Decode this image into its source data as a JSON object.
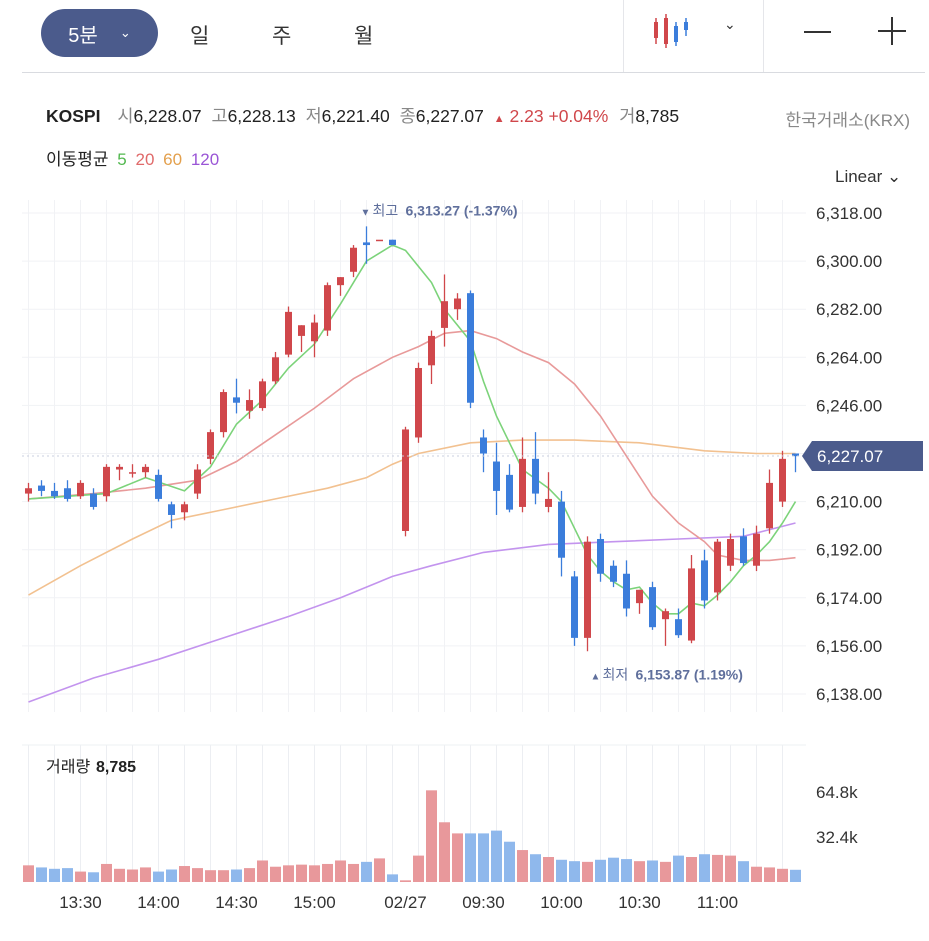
{
  "toolbar": {
    "intervals": [
      "5분",
      "일",
      "주",
      "월"
    ],
    "selected_interval": "5분"
  },
  "quote": {
    "symbol": "KOSPI",
    "open_label": "시",
    "open": "6,228.07",
    "high_label": "고",
    "high": "6,228.13",
    "low_label": "저",
    "low": "6,221.40",
    "close_label": "종",
    "close": "6,227.07",
    "change_arrow": "▲",
    "change": "2.23",
    "change_pct": "+0.04%",
    "volume_label": "거",
    "volume": "8,785",
    "exchange": "한국거래소(KRX)"
  },
  "ma_legend": {
    "title": "이동평균",
    "periods": [
      {
        "label": "5",
        "color": "#52b84f"
      },
      {
        "label": "20",
        "color": "#e06a6a"
      },
      {
        "label": "60",
        "color": "#e3a04d"
      },
      {
        "label": "120",
        "color": "#9a55d6"
      }
    ]
  },
  "scale": "Linear",
  "colors": {
    "up": "#d0474b",
    "down": "#3b7ddb",
    "up_volume": "#e8989b",
    "down_volume": "#8fb8ec",
    "ma5": "#7cd37a",
    "ma20": "#e89a9a",
    "ma60": "#f2c190",
    "ma120": "#c394ee",
    "current_tag": "#4b5b8c",
    "annotation": "#5f6f9c"
  },
  "chart_data": {
    "type": "candlestick",
    "y_ticks": [
      "6,318.00",
      "6,300.00",
      "6,282.00",
      "6,264.00",
      "6,246.00",
      "6,210.00",
      "6,192.00",
      "6,174.00",
      "6,156.00",
      "6,138.00"
    ],
    "y_tick_values": [
      6318,
      6300,
      6282,
      6264,
      6246,
      6210,
      6192,
      6174,
      6156,
      6138
    ],
    "ylim": [
      6131,
      6325
    ],
    "x_labels": [
      "13:30",
      "14:00",
      "14:30",
      "15:00",
      "02/27",
      "09:30",
      "10:00",
      "10:30",
      "11:00"
    ],
    "x_label_index": [
      4,
      10,
      16,
      22,
      29,
      35,
      41,
      47,
      53
    ],
    "current_price": "6,227.07",
    "current_price_value": 6227.07,
    "high_note": {
      "arrow": "▼",
      "label": "최고",
      "value": "6,313.27 (-1.37%)",
      "price": 6313.27,
      "index": 26
    },
    "low_note": {
      "arrow": "▲",
      "label": "최저",
      "value": "6,153.87 (1.19%)",
      "price": 6153.87,
      "index": 44
    },
    "candles": [
      {
        "o": 6213,
        "h": 6217,
        "l": 6210,
        "c": 6215
      },
      {
        "o": 6216,
        "h": 6218,
        "l": 6212,
        "c": 6214
      },
      {
        "o": 6214,
        "h": 6217,
        "l": 6211,
        "c": 6212
      },
      {
        "o": 6215,
        "h": 6218,
        "l": 6210,
        "c": 6211
      },
      {
        "o": 6212,
        "h": 6218,
        "l": 6211,
        "c": 6217
      },
      {
        "o": 6213,
        "h": 6215,
        "l": 6207,
        "c": 6208
      },
      {
        "o": 6212,
        "h": 6224,
        "l": 6210,
        "c": 6223
      },
      {
        "o": 6222,
        "h": 6224,
        "l": 6218,
        "c": 6223
      },
      {
        "o": 6221,
        "h": 6224,
        "l": 6219,
        "c": 6221
      },
      {
        "o": 6221,
        "h": 6224,
        "l": 6219,
        "c": 6223
      },
      {
        "o": 6220,
        "h": 6222,
        "l": 6210,
        "c": 6211
      },
      {
        "o": 6209,
        "h": 6210,
        "l": 6200,
        "c": 6205
      },
      {
        "o": 6206,
        "h": 6210,
        "l": 6203,
        "c": 6209
      },
      {
        "o": 6213,
        "h": 6224,
        "l": 6211,
        "c": 6222
      },
      {
        "o": 6226,
        "h": 6237,
        "l": 6224,
        "c": 6236
      },
      {
        "o": 6236,
        "h": 6252,
        "l": 6234,
        "c": 6251
      },
      {
        "o": 6249,
        "h": 6256,
        "l": 6243,
        "c": 6247
      },
      {
        "o": 6244,
        "h": 6252,
        "l": 6241,
        "c": 6248
      },
      {
        "o": 6245,
        "h": 6256,
        "l": 6244,
        "c": 6255
      },
      {
        "o": 6255,
        "h": 6266,
        "l": 6254,
        "c": 6264
      },
      {
        "o": 6265,
        "h": 6283,
        "l": 6264,
        "c": 6281
      },
      {
        "o": 6272,
        "h": 6276,
        "l": 6266,
        "c": 6276
      },
      {
        "o": 6270,
        "h": 6280,
        "l": 6264,
        "c": 6277
      },
      {
        "o": 6274,
        "h": 6292,
        "l": 6272,
        "c": 6291
      },
      {
        "o": 6291,
        "h": 6294,
        "l": 6287,
        "c": 6294
      },
      {
        "o": 6296,
        "h": 6306,
        "l": 6294,
        "c": 6305
      },
      {
        "o": 6307,
        "h": 6313,
        "l": 6299,
        "c": 6306
      },
      {
        "o": 6308,
        "h": 6308,
        "l": 6308,
        "c": 6308
      },
      {
        "o": 6308,
        "h": 6308,
        "l": 6306,
        "c": 6306
      },
      {
        "o": 6199,
        "h": 6238,
        "l": 6197,
        "c": 6237
      },
      {
        "o": 6234,
        "h": 6262,
        "l": 6232,
        "c": 6260
      },
      {
        "o": 6261,
        "h": 6274,
        "l": 6254,
        "c": 6272
      },
      {
        "o": 6275,
        "h": 6295,
        "l": 6268,
        "c": 6285
      },
      {
        "o": 6282,
        "h": 6288,
        "l": 6278,
        "c": 6286
      },
      {
        "o": 6288,
        "h": 6289,
        "l": 6245,
        "c": 6247
      },
      {
        "o": 6234,
        "h": 6237,
        "l": 6221,
        "c": 6228
      },
      {
        "o": 6225,
        "h": 6232,
        "l": 6205,
        "c": 6214
      },
      {
        "o": 6220,
        "h": 6224,
        "l": 6206,
        "c": 6207
      },
      {
        "o": 6208,
        "h": 6234,
        "l": 6206,
        "c": 6226
      },
      {
        "o": 6226,
        "h": 6236,
        "l": 6209,
        "c": 6213
      },
      {
        "o": 6208,
        "h": 6221,
        "l": 6206,
        "c": 6211
      },
      {
        "o": 6210,
        "h": 6214,
        "l": 6182,
        "c": 6189
      },
      {
        "o": 6182,
        "h": 6184,
        "l": 6156,
        "c": 6159
      },
      {
        "o": 6159,
        "h": 6197,
        "l": 6154,
        "c": 6195
      },
      {
        "o": 6196,
        "h": 6198,
        "l": 6180,
        "c": 6183
      },
      {
        "o": 6186,
        "h": 6188,
        "l": 6178,
        "c": 6180
      },
      {
        "o": 6183,
        "h": 6188,
        "l": 6167,
        "c": 6170
      },
      {
        "o": 6172,
        "h": 6177,
        "l": 6168,
        "c": 6177
      },
      {
        "o": 6178,
        "h": 6180,
        "l": 6162,
        "c": 6163
      },
      {
        "o": 6166,
        "h": 6170,
        "l": 6156,
        "c": 6169
      },
      {
        "o": 6166,
        "h": 6170,
        "l": 6159,
        "c": 6160
      },
      {
        "o": 6158,
        "h": 6190,
        "l": 6157,
        "c": 6185
      },
      {
        "o": 6188,
        "h": 6192,
        "l": 6170,
        "c": 6173
      },
      {
        "o": 6176,
        "h": 6196,
        "l": 6173,
        "c": 6195
      },
      {
        "o": 6186,
        "h": 6198,
        "l": 6184,
        "c": 6196
      },
      {
        "o": 6197,
        "h": 6200,
        "l": 6186,
        "c": 6187
      },
      {
        "o": 6186,
        "h": 6201,
        "l": 6184,
        "c": 6198
      },
      {
        "o": 6200,
        "h": 6222,
        "l": 6198,
        "c": 6217
      },
      {
        "o": 6210,
        "h": 6229,
        "l": 6208,
        "c": 6226
      },
      {
        "o": 6228,
        "h": 6228,
        "l": 6221,
        "c": 6227
      }
    ],
    "ma": {
      "ma5": [
        [
          0,
          6211
        ],
        [
          6,
          6213
        ],
        [
          9,
          6219
        ],
        [
          12,
          6214
        ],
        [
          14,
          6223
        ],
        [
          16,
          6239
        ],
        [
          18,
          6248
        ],
        [
          20,
          6260
        ],
        [
          22,
          6269
        ],
        [
          24,
          6284
        ],
        [
          26,
          6300
        ],
        [
          28,
          6306
        ],
        [
          29,
          6304
        ],
        [
          31,
          6292
        ],
        [
          32,
          6282
        ],
        [
          34,
          6270
        ],
        [
          35,
          6255
        ],
        [
          36,
          6242
        ],
        [
          37,
          6232
        ],
        [
          38,
          6222
        ],
        [
          40,
          6215
        ],
        [
          41,
          6210
        ],
        [
          42,
          6200
        ],
        [
          43,
          6190
        ],
        [
          44,
          6184
        ],
        [
          45,
          6180
        ],
        [
          46,
          6177
        ],
        [
          47,
          6178
        ],
        [
          48,
          6172
        ],
        [
          49,
          6168
        ],
        [
          50,
          6168
        ],
        [
          51,
          6172
        ],
        [
          52,
          6171
        ],
        [
          53,
          6175
        ],
        [
          54,
          6180
        ],
        [
          55,
          6186
        ],
        [
          56,
          6190
        ],
        [
          57,
          6195
        ],
        [
          58,
          6202
        ],
        [
          59,
          6210
        ]
      ],
      "ma20": [
        [
          0,
          6211
        ],
        [
          5,
          6213
        ],
        [
          9,
          6215
        ],
        [
          13,
          6218
        ],
        [
          16,
          6225
        ],
        [
          19,
          6235
        ],
        [
          22,
          6245
        ],
        [
          25,
          6256
        ],
        [
          28,
          6264
        ],
        [
          30,
          6268
        ],
        [
          32,
          6273
        ],
        [
          34,
          6274
        ],
        [
          36,
          6271
        ],
        [
          38,
          6266
        ],
        [
          40,
          6262
        ],
        [
          42,
          6254
        ],
        [
          44,
          6242
        ],
        [
          46,
          6227
        ],
        [
          48,
          6212
        ],
        [
          50,
          6202
        ],
        [
          52,
          6195
        ],
        [
          53,
          6190
        ],
        [
          55,
          6188
        ],
        [
          57,
          6188
        ],
        [
          59,
          6189
        ]
      ],
      "ma60": [
        [
          0,
          6175
        ],
        [
          4,
          6186
        ],
        [
          8,
          6196
        ],
        [
          11,
          6203
        ],
        [
          15,
          6207
        ],
        [
          19,
          6211
        ],
        [
          23,
          6215
        ],
        [
          26,
          6219
        ],
        [
          28,
          6224
        ],
        [
          30,
          6228
        ],
        [
          34,
          6232
        ],
        [
          38,
          6233
        ],
        [
          42,
          6233
        ],
        [
          47,
          6232
        ],
        [
          52,
          6229
        ],
        [
          56,
          6228
        ],
        [
          59,
          6228
        ]
      ],
      "ma120": [
        [
          0,
          6135
        ],
        [
          5,
          6144
        ],
        [
          10,
          6151
        ],
        [
          15,
          6159
        ],
        [
          20,
          6167
        ],
        [
          24,
          6174
        ],
        [
          28,
          6182
        ],
        [
          31,
          6186
        ],
        [
          35,
          6191
        ],
        [
          40,
          6194
        ],
        [
          45,
          6195
        ],
        [
          50,
          6196
        ],
        [
          55,
          6197
        ],
        [
          59,
          6202
        ]
      ]
    },
    "volume": {
      "title": "거래량",
      "value": "8,785",
      "y_ticks": [
        "64.8k",
        "32.4k"
      ],
      "y_tick_values": [
        64800,
        32400
      ],
      "ylim": [
        0,
        70000
      ],
      "values": [
        12000,
        10500,
        9500,
        10000,
        7500,
        7000,
        13000,
        9500,
        9000,
        10500,
        7500,
        9000,
        11500,
        10000,
        8500,
        8500,
        9000,
        10000,
        15500,
        11000,
        12000,
        12500,
        12000,
        13000,
        15500,
        13000,
        14500,
        17000,
        5500,
        1200,
        19000,
        66000,
        43000,
        35000,
        35000,
        35000,
        37000,
        29000,
        23000,
        20000,
        18000,
        16000,
        15000,
        14500,
        16000,
        17500,
        16500,
        15000,
        15500,
        14500,
        19000,
        18000,
        20000,
        19500,
        19000,
        15000,
        11000,
        10500,
        9500,
        8785
      ]
    }
  }
}
